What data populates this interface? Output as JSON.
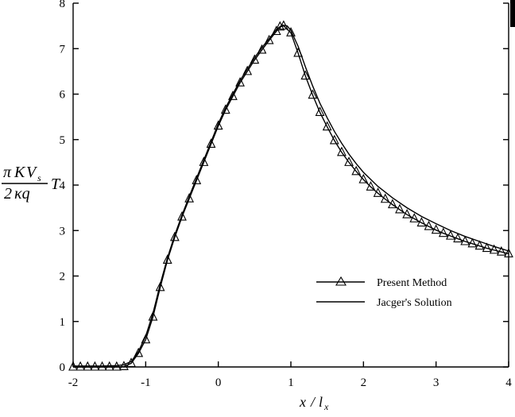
{
  "chart_data": {
    "type": "line",
    "title": "",
    "xlabel": "x/l_x",
    "ylabel": "πKV_s / 2κq T",
    "xlim": [
      -2,
      4
    ],
    "ylim": [
      0,
      8
    ],
    "xticks": [
      -2,
      -1,
      0,
      1,
      2,
      3,
      4
    ],
    "yticks": [
      0,
      1,
      2,
      3,
      4,
      5,
      6,
      7,
      8
    ],
    "grid": false,
    "legend_position": "right-middle",
    "series": [
      {
        "name": "Present Method",
        "style": "line-with-triangle-markers",
        "points": [
          [
            -2.0,
            0.0
          ],
          [
            -1.9,
            0.0
          ],
          [
            -1.8,
            0.0
          ],
          [
            -1.7,
            0.0
          ],
          [
            -1.6,
            0.0
          ],
          [
            -1.5,
            0.0
          ],
          [
            -1.4,
            0.0
          ],
          [
            -1.3,
            0.01
          ],
          [
            -1.2,
            0.08
          ],
          [
            -1.1,
            0.3
          ],
          [
            -1.0,
            0.6
          ],
          [
            -0.9,
            1.1
          ],
          [
            -0.8,
            1.75
          ],
          [
            -0.7,
            2.35
          ],
          [
            -0.6,
            2.85
          ],
          [
            -0.5,
            3.3
          ],
          [
            -0.4,
            3.7
          ],
          [
            -0.3,
            4.1
          ],
          [
            -0.2,
            4.5
          ],
          [
            -0.1,
            4.9
          ],
          [
            0.0,
            5.3
          ],
          [
            0.1,
            5.65
          ],
          [
            0.2,
            5.95
          ],
          [
            0.3,
            6.25
          ],
          [
            0.4,
            6.5
          ],
          [
            0.5,
            6.75
          ],
          [
            0.6,
            6.97
          ],
          [
            0.7,
            7.18
          ],
          [
            0.8,
            7.38
          ],
          [
            0.85,
            7.48
          ],
          [
            0.9,
            7.5
          ],
          [
            1.0,
            7.35
          ],
          [
            1.1,
            6.9
          ],
          [
            1.2,
            6.4
          ],
          [
            1.3,
            5.98
          ],
          [
            1.4,
            5.6
          ],
          [
            1.5,
            5.28
          ],
          [
            1.6,
            4.98
          ],
          [
            1.7,
            4.72
          ],
          [
            1.8,
            4.5
          ],
          [
            1.9,
            4.3
          ],
          [
            2.0,
            4.12
          ],
          [
            2.1,
            3.96
          ],
          [
            2.2,
            3.82
          ],
          [
            2.3,
            3.69
          ],
          [
            2.4,
            3.57
          ],
          [
            2.5,
            3.46
          ],
          [
            2.6,
            3.35
          ],
          [
            2.7,
            3.26
          ],
          [
            2.8,
            3.17
          ],
          [
            2.9,
            3.09
          ],
          [
            3.0,
            3.01
          ],
          [
            3.1,
            2.94
          ],
          [
            3.2,
            2.88
          ],
          [
            3.3,
            2.82
          ],
          [
            3.4,
            2.76
          ],
          [
            3.5,
            2.71
          ],
          [
            3.6,
            2.66
          ],
          [
            3.7,
            2.61
          ],
          [
            3.8,
            2.57
          ],
          [
            3.9,
            2.53
          ],
          [
            4.0,
            2.49
          ]
        ]
      },
      {
        "name": "Jacger's Solution",
        "style": "line",
        "points": [
          [
            -2.0,
            0.02
          ],
          [
            -1.8,
            0.02
          ],
          [
            -1.6,
            0.02
          ],
          [
            -1.4,
            0.03
          ],
          [
            -1.3,
            0.05
          ],
          [
            -1.2,
            0.12
          ],
          [
            -1.1,
            0.34
          ],
          [
            -1.0,
            0.68
          ],
          [
            -0.9,
            1.18
          ],
          [
            -0.8,
            1.82
          ],
          [
            -0.7,
            2.4
          ],
          [
            -0.6,
            2.9
          ],
          [
            -0.5,
            3.34
          ],
          [
            -0.4,
            3.75
          ],
          [
            -0.3,
            4.15
          ],
          [
            -0.2,
            4.55
          ],
          [
            -0.1,
            4.95
          ],
          [
            0.0,
            5.35
          ],
          [
            0.1,
            5.7
          ],
          [
            0.2,
            6.0
          ],
          [
            0.3,
            6.3
          ],
          [
            0.4,
            6.55
          ],
          [
            0.5,
            6.8
          ],
          [
            0.6,
            7.02
          ],
          [
            0.7,
            7.22
          ],
          [
            0.8,
            7.42
          ],
          [
            0.88,
            7.52
          ],
          [
            0.95,
            7.5
          ],
          [
            1.0,
            7.4
          ],
          [
            1.1,
            7.05
          ],
          [
            1.2,
            6.6
          ],
          [
            1.3,
            6.18
          ],
          [
            1.4,
            5.8
          ],
          [
            1.5,
            5.48
          ],
          [
            1.6,
            5.18
          ],
          [
            1.7,
            4.92
          ],
          [
            1.8,
            4.68
          ],
          [
            1.9,
            4.47
          ],
          [
            2.0,
            4.28
          ],
          [
            2.2,
            3.97
          ],
          [
            2.4,
            3.72
          ],
          [
            2.6,
            3.5
          ],
          [
            2.8,
            3.31
          ],
          [
            3.0,
            3.15
          ],
          [
            3.2,
            3.0
          ],
          [
            3.4,
            2.87
          ],
          [
            3.6,
            2.76
          ],
          [
            3.8,
            2.65
          ],
          [
            4.0,
            2.55
          ]
        ]
      }
    ]
  },
  "labels": {
    "xlabel_num": "x",
    "xlabel_slash": "/",
    "xlabel_den": "l",
    "xlabel_sub": "x",
    "ylabel_pi": "π",
    "ylabel_k": "K",
    "ylabel_v": "V",
    "ylabel_s": "s",
    "ylabel_den_2": "2",
    "ylabel_den_kq": "κq",
    "ylabel_t": "T"
  }
}
